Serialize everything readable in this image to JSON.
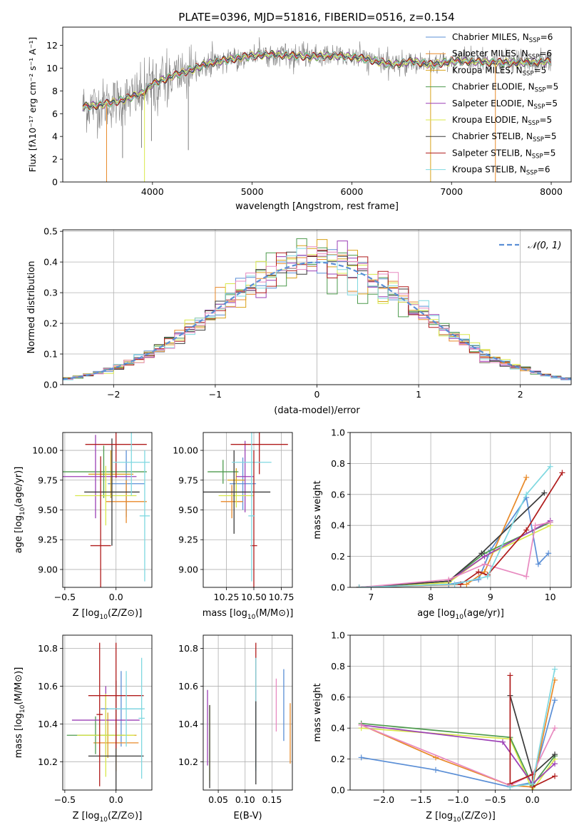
{
  "figure": {
    "title": "PLATE=0396, MJD=51816, FIBERID=0516, z=0.154"
  },
  "colors": {
    "grid": "#b0b0b0",
    "axis": "#000000",
    "data_gray": "#7f7f7f",
    "gauss": "#5b8fd6"
  },
  "chart_data": [
    {
      "id": "spectrum",
      "type": "line",
      "xlabel": "wavelength [Angstrom, rest frame]",
      "ylabel": "Flux [fλ10⁻¹⁷ erg cm⁻² s⁻¹ A⁻¹]",
      "xlim": [
        3100,
        8200
      ],
      "ylim": [
        0,
        13.6
      ],
      "xticks": [
        4000,
        5000,
        6000,
        7000,
        8000
      ],
      "yticks": [
        0,
        2,
        4,
        6,
        8,
        10,
        12
      ],
      "grid": false,
      "legend_position": "right",
      "series": [
        {
          "name": "Chabrier MILES, N_SSP=6",
          "label_main": "Chabrier MILES, N",
          "label_sub": "SSP",
          "label_tail": "=6",
          "color": "#5b8fd6"
        },
        {
          "name": "Salpeter MILES, N_SSP=6",
          "label_main": "Salpeter MILES, N",
          "label_sub": "SSP",
          "label_tail": "=6",
          "color": "#e88a2a"
        },
        {
          "name": "Kroupa MILES, N_SSP=5",
          "label_main": "Kroupa MILES, N",
          "label_sub": "SSP",
          "label_tail": "=5",
          "color": "#d9a21a"
        },
        {
          "name": "Chabrier ELODIE, N_SSP=5",
          "label_main": "Chabrier ELODIE, N",
          "label_sub": "SSP",
          "label_tail": "=5",
          "color": "#4d9a4d"
        },
        {
          "name": "Salpeter ELODIE, N_SSP=5",
          "label_main": "Salpeter ELODIE, N",
          "label_sub": "SSP",
          "label_tail": "=5",
          "color": "#9b3fb5"
        },
        {
          "name": "Kroupa ELODIE, N_SSP=5",
          "label_main": "Kroupa ELODIE, N",
          "label_sub": "SSP",
          "label_tail": "=5",
          "color": "#d8e84a"
        },
        {
          "name": "Chabrier STELIB, N_SSP=5",
          "label_main": "Chabrier STELIB, N",
          "label_sub": "SSP",
          "label_tail": "=5",
          "color": "#3a3a3a"
        },
        {
          "name": "Salpeter STELIB, N_SSP=5",
          "label_main": "Salpeter STELIB, N",
          "label_sub": "SSP",
          "label_tail": "=5",
          "color": "#b01c1c"
        },
        {
          "name": "Kroupa STELIB, N_SSP=6",
          "label_main": "Kroupa STELIB, N",
          "label_sub": "SSP",
          "label_tail": "=6",
          "color": "#7fd8e0"
        }
      ],
      "continuum": [
        [
          3300,
          6.6
        ],
        [
          3500,
          6.8
        ],
        [
          3700,
          7.2
        ],
        [
          3900,
          7.8
        ],
        [
          4000,
          8.6
        ],
        [
          4200,
          9.3
        ],
        [
          4400,
          9.9
        ],
        [
          4600,
          10.5
        ],
        [
          4800,
          10.8
        ],
        [
          5000,
          11.1
        ],
        [
          5200,
          11.2
        ],
        [
          5400,
          11.1
        ],
        [
          5600,
          11.0
        ],
        [
          5800,
          11.1
        ],
        [
          6000,
          11.0
        ],
        [
          6200,
          10.7
        ],
        [
          6400,
          10.3
        ],
        [
          6600,
          10.6
        ],
        [
          6800,
          10.3
        ],
        [
          7000,
          10.6
        ],
        [
          7200,
          10.6
        ],
        [
          7400,
          10.5
        ],
        [
          7600,
          10.5
        ],
        [
          7800,
          10.5
        ],
        [
          8000,
          10.6
        ]
      ],
      "spikes": [
        [
          3540,
          0
        ],
        [
          3920,
          0
        ],
        [
          6790,
          0
        ],
        [
          7440,
          0
        ],
        [
          3700,
          2.1
        ],
        [
          4360,
          2.8
        ],
        [
          3890,
          3.0
        ],
        [
          3990,
          3.6
        ]
      ]
    },
    {
      "id": "residuals",
      "type": "bar",
      "xlabel": "(data-model)/error",
      "ylabel": "Normed distribution",
      "xlim": [
        -2.5,
        2.5
      ],
      "ylim": [
        0,
        0.505
      ],
      "xticks": [
        -2,
        -1,
        0,
        1,
        2
      ],
      "yticks": [
        0.0,
        0.1,
        0.2,
        0.3,
        0.4,
        0.5
      ],
      "grid": true,
      "legend_position": "top-right",
      "gauss_label": "𝒩(0, 1)",
      "bin_width": 0.1
    },
    {
      "id": "z_age",
      "type": "scatter",
      "xlabel_main": "Z [log",
      "xlabel_sub": "10",
      "xlabel_tail": "(Z/Z⊙)]",
      "ylabel_main": "age  [log",
      "ylabel_sub": "10",
      "ylabel_tail": "(age/yr)]",
      "xlim": [
        -0.52,
        0.35
      ],
      "ylim": [
        8.85,
        10.15
      ],
      "xticks": [
        -0.5,
        0.0
      ],
      "yticks": [
        9.0,
        9.25,
        9.5,
        9.75,
        10.0
      ],
      "grid": true,
      "points": [
        {
          "x": 0.1,
          "xerr": 0.18,
          "y": 9.72,
          "yerr": 0.28,
          "color": "#5b8fd6"
        },
        {
          "x": 0.1,
          "xerr": 0.2,
          "y": 9.57,
          "yerr": 0.18,
          "color": "#e88a2a"
        },
        {
          "x": -0.05,
          "xerr": 0.22,
          "y": 9.8,
          "yerr": 0.2,
          "color": "#d9a21a"
        },
        {
          "x": -0.12,
          "xerr": 0.42,
          "y": 9.82,
          "yerr": 0.22,
          "color": "#4d9a4d"
        },
        {
          "x": -0.2,
          "xerr": 0.4,
          "y": 9.78,
          "yerr": 0.35,
          "color": "#9b3fb5"
        },
        {
          "x": -0.1,
          "xerr": 0.3,
          "y": 9.62,
          "yerr": 0.25,
          "color": "#d8e84a"
        },
        {
          "x": -0.04,
          "xerr": 0.27,
          "y": 9.65,
          "yerr": 0.45,
          "color": "#3a3a3a"
        },
        {
          "x": 0.0,
          "xerr": 0.3,
          "y": 10.05,
          "yerr": 0.28,
          "color": "#b01c1c"
        },
        {
          "x": 0.15,
          "xerr": 0.18,
          "y": 9.9,
          "yerr": 0.28,
          "color": "#7fd8e0"
        },
        {
          "x": -0.15,
          "xerr": 0.1,
          "y": 9.2,
          "yerr": 0.75,
          "color": "#b01c1c"
        },
        {
          "x": 0.28,
          "xerr": 0.05,
          "y": 9.45,
          "yerr": 0.55,
          "color": "#7fd8e0"
        }
      ]
    },
    {
      "id": "mass_age",
      "type": "scatter",
      "xlabel_main": "mass [log",
      "xlabel_sub": "10",
      "xlabel_tail": "(M/M⊙)]",
      "ylabel_main": "",
      "ylabel_sub": "",
      "ylabel_tail": "",
      "xlim": [
        10.04,
        10.85
      ],
      "ylim": [
        8.85,
        10.15
      ],
      "xticks": [
        10.25,
        10.5,
        10.75
      ],
      "yticks": [
        9.0,
        9.25,
        9.5,
        9.75,
        10.0
      ],
      "grid": true,
      "points": [
        {
          "x": 10.4,
          "xerr": 0.12,
          "y": 9.72,
          "yerr": 0.22,
          "color": "#5b8fd6"
        },
        {
          "x": 10.3,
          "xerr": 0.1,
          "y": 9.57,
          "yerr": 0.14,
          "color": "#e88a2a"
        },
        {
          "x": 10.34,
          "xerr": 0.08,
          "y": 9.75,
          "yerr": 0.1,
          "color": "#d9a21a"
        },
        {
          "x": 10.22,
          "xerr": 0.14,
          "y": 9.82,
          "yerr": 0.1,
          "color": "#4d9a4d"
        },
        {
          "x": 10.42,
          "xerr": 0.08,
          "y": 9.78,
          "yerr": 0.3,
          "color": "#9b3fb5"
        },
        {
          "x": 10.34,
          "xerr": 0.16,
          "y": 9.62,
          "yerr": 0.1,
          "color": "#d8e84a"
        },
        {
          "x": 10.32,
          "xerr": 0.33,
          "y": 9.65,
          "yerr": 0.35,
          "color": "#3a3a3a"
        },
        {
          "x": 10.55,
          "xerr": 0.26,
          "y": 10.05,
          "yerr": 0.25,
          "color": "#b01c1c"
        },
        {
          "x": 10.48,
          "xerr": 0.18,
          "y": 9.9,
          "yerr": 0.3,
          "color": "#7fd8e0"
        },
        {
          "x": 10.5,
          "xerr": 0.03,
          "y": 9.2,
          "yerr": 0.8,
          "color": "#b01c1c"
        },
        {
          "x": 10.48,
          "xerr": 0.03,
          "y": 9.45,
          "yerr": 0.55,
          "color": "#7fd8e0"
        }
      ]
    },
    {
      "id": "z_mass",
      "type": "scatter",
      "xlabel_main": "Z [log",
      "xlabel_sub": "10",
      "xlabel_tail": "(Z/Z⊙)]",
      "ylabel_main": "mass [log",
      "ylabel_sub": "10",
      "ylabel_tail": "(M/M⊙)]",
      "xlim": [
        -0.52,
        0.35
      ],
      "ylim": [
        10.05,
        10.87
      ],
      "xticks": [
        -0.5,
        0.0
      ],
      "yticks": [
        10.2,
        10.4,
        10.6,
        10.8
      ],
      "grid": true,
      "points": [
        {
          "x": 0.05,
          "xerr": 0.2,
          "y": 10.48,
          "yerr": 0.2,
          "color": "#5b8fd6"
        },
        {
          "x": 0.0,
          "xerr": 0.22,
          "y": 10.3,
          "yerr": 0.15,
          "color": "#e88a2a"
        },
        {
          "x": -0.08,
          "xerr": 0.28,
          "y": 10.34,
          "yerr": 0.12,
          "color": "#d9a21a"
        },
        {
          "x": -0.2,
          "xerr": 0.28,
          "y": 10.34,
          "yerr": 0.1,
          "color": "#4d9a4d"
        },
        {
          "x": -0.1,
          "xerr": 0.33,
          "y": 10.42,
          "yerr": 0.18,
          "color": "#9b3fb5"
        },
        {
          "x": -0.1,
          "xerr": 0.28,
          "y": 10.34,
          "yerr": 0.22,
          "color": "#d8e84a"
        },
        {
          "x": 0.0,
          "xerr": 0.27,
          "y": 10.23,
          "yerr": 0.4,
          "color": "#3a3a3a"
        },
        {
          "x": 0.0,
          "xerr": 0.27,
          "y": 10.55,
          "yerr": 0.28,
          "color": "#b01c1c"
        },
        {
          "x": 0.1,
          "xerr": 0.18,
          "y": 10.48,
          "yerr": 0.2,
          "color": "#7fd8e0"
        },
        {
          "x": -0.16,
          "xerr": 0.03,
          "y": 10.45,
          "yerr": 0.38,
          "color": "#b01c1c"
        },
        {
          "x": 0.25,
          "xerr": 0.03,
          "y": 10.43,
          "yerr": 0.32,
          "color": "#7fd8e0"
        }
      ]
    },
    {
      "id": "ebv_mass",
      "type": "scatter",
      "xlabel_main": "E(B-V)",
      "xlabel_sub": "",
      "xlabel_tail": "",
      "ylabel_main": "",
      "ylabel_sub": "",
      "ylabel_tail": "",
      "xlim": [
        0.022,
        0.188
      ],
      "ylim": [
        10.05,
        10.87
      ],
      "xticks": [
        0.05,
        0.1,
        0.15
      ],
      "yticks": [
        10.2,
        10.4,
        10.6,
        10.8
      ],
      "grid": true,
      "points": [
        {
          "x": 0.172,
          "xerr": 0,
          "y": 10.5,
          "yerr": 0.19,
          "color": "#5b8fd6"
        },
        {
          "x": 0.184,
          "xerr": 0,
          "y": 10.35,
          "yerr": 0.16,
          "color": "#e88a2a"
        },
        {
          "x": 0.03,
          "xerr": 0,
          "y": 10.38,
          "yerr": 0.2,
          "color": "#9b3fb5"
        },
        {
          "x": 0.034,
          "xerr": 0,
          "y": 10.3,
          "yerr": 0.2,
          "color": "#d8e84a"
        },
        {
          "x": 0.034,
          "xerr": 0,
          "y": 10.28,
          "yerr": 0.22,
          "color": "#3a3a3a"
        },
        {
          "x": 0.12,
          "xerr": 0,
          "y": 10.5,
          "yerr": 0.33,
          "color": "#b01c1c"
        },
        {
          "x": 0.12,
          "xerr": 0,
          "y": 10.45,
          "yerr": 0.3,
          "color": "#7fd8e0"
        },
        {
          "x": 0.12,
          "xerr": 0,
          "y": 10.3,
          "yerr": 0.22,
          "color": "#3a3a3a"
        },
        {
          "x": 0.158,
          "xerr": 0,
          "y": 10.5,
          "yerr": 0.14,
          "color": "#e88ac0"
        }
      ]
    },
    {
      "id": "age_weight",
      "type": "line",
      "xlabel_main": "age  [log",
      "xlabel_sub": "10",
      "xlabel_tail": "(age/yr)]",
      "ylabel_main": "mass weight",
      "ylabel_sub": "",
      "ylabel_tail": "",
      "xlim": [
        6.65,
        10.35
      ],
      "ylim": [
        0,
        1.0
      ],
      "xticks": [
        7,
        8,
        9,
        10
      ],
      "yticks": [
        0.0,
        0.2,
        0.4,
        0.6,
        0.8,
        1.0
      ],
      "grid": true,
      "series": [
        {
          "color": "#5b8fd6",
          "x": [
            6.8,
            8.3,
            8.8,
            9.0,
            9.6,
            9.8,
            9.97
          ],
          "y": [
            0.0,
            0.02,
            0.05,
            0.24,
            0.58,
            0.15,
            0.22
          ]
        },
        {
          "color": "#e88a2a",
          "x": [
            6.8,
            8.6,
            8.9,
            9.6
          ],
          "y": [
            0.0,
            0.02,
            0.1,
            0.71
          ]
        },
        {
          "color": "#d8e84a",
          "x": [
            6.8,
            8.3,
            8.9,
            10.0
          ],
          "y": [
            0.0,
            0.03,
            0.2,
            0.4
          ]
        },
        {
          "color": "#4d9a4d",
          "x": [
            6.8,
            8.3,
            8.9,
            10.0
          ],
          "y": [
            0.0,
            0.04,
            0.22,
            0.42
          ]
        },
        {
          "color": "#9b3fb5",
          "x": [
            6.8,
            8.3,
            8.9,
            10.0
          ],
          "y": [
            0.0,
            0.04,
            0.2,
            0.43
          ]
        },
        {
          "color": "#3a3a3a",
          "x": [
            6.8,
            8.3,
            8.85,
            9.9
          ],
          "y": [
            0.0,
            0.04,
            0.22,
            0.61
          ]
        },
        {
          "color": "#e88ac0",
          "x": [
            6.8,
            8.3,
            8.9,
            9.6,
            9.75,
            10.0
          ],
          "y": [
            0.0,
            0.05,
            0.15,
            0.07,
            0.4,
            0.42
          ]
        },
        {
          "color": "#b01c1c",
          "x": [
            6.8,
            8.5,
            8.8,
            8.95,
            9.6,
            10.2
          ],
          "y": [
            0.0,
            0.02,
            0.1,
            0.08,
            0.37,
            0.74
          ]
        },
        {
          "color": "#7fd8e0",
          "x": [
            6.8,
            8.4,
            8.95,
            9.6,
            10.0
          ],
          "y": [
            0.0,
            0.02,
            0.07,
            0.6,
            0.78
          ]
        }
      ]
    },
    {
      "id": "z_weight",
      "type": "line",
      "xlabel_main": "Z [log",
      "xlabel_sub": "10",
      "xlabel_tail": "(Z/Z⊙)]",
      "ylabel_main": "mass weight",
      "ylabel_sub": "",
      "ylabel_tail": "",
      "xlim": [
        -2.45,
        0.52
      ],
      "ylim": [
        0,
        1.0
      ],
      "xticks": [
        -2.0,
        -1.5,
        -1.0,
        -0.5,
        0.0
      ],
      "yticks": [
        0.0,
        0.2,
        0.4,
        0.6,
        0.8,
        1.0
      ],
      "grid": true,
      "series": [
        {
          "color": "#5b8fd6",
          "x": [
            -2.3,
            -1.3,
            -0.3,
            0.0,
            0.3
          ],
          "y": [
            0.21,
            0.13,
            0.02,
            0.05,
            0.58
          ]
        },
        {
          "color": "#e88a2a",
          "x": [
            -2.3,
            -1.3,
            -0.3,
            0.0,
            0.3
          ],
          "y": [
            0.42,
            0.21,
            0.03,
            0.02,
            0.71
          ]
        },
        {
          "color": "#d8e84a",
          "x": [
            -2.3,
            -0.3,
            0.0,
            0.3
          ],
          "y": [
            0.4,
            0.33,
            0.0,
            0.2
          ]
        },
        {
          "color": "#4d9a4d",
          "x": [
            -2.3,
            -0.3,
            0.0,
            0.3
          ],
          "y": [
            0.43,
            0.34,
            0.03,
            0.22
          ]
        },
        {
          "color": "#9b3fb5",
          "x": [
            -2.3,
            -0.4,
            0.0,
            0.3
          ],
          "y": [
            0.42,
            0.31,
            0.04,
            0.17
          ]
        },
        {
          "color": "#3a3a3a",
          "x": [
            -0.3,
            0.0,
            0.3
          ],
          "y": [
            0.61,
            0.1,
            0.23
          ]
        },
        {
          "color": "#e88ac0",
          "x": [
            -2.3,
            -0.3,
            0.0,
            0.3
          ],
          "y": [
            0.42,
            0.03,
            0.1,
            0.4
          ]
        },
        {
          "color": "#b01c1c",
          "x": [
            -0.3,
            -0.3,
            0.0,
            0.0,
            0.3
          ],
          "y": [
            0.74,
            0.04,
            0.1,
            0.02,
            0.09
          ]
        },
        {
          "color": "#7fd8e0",
          "x": [
            -0.3,
            0.0,
            0.3
          ],
          "y": [
            0.02,
            0.04,
            0.78
          ]
        }
      ]
    }
  ]
}
